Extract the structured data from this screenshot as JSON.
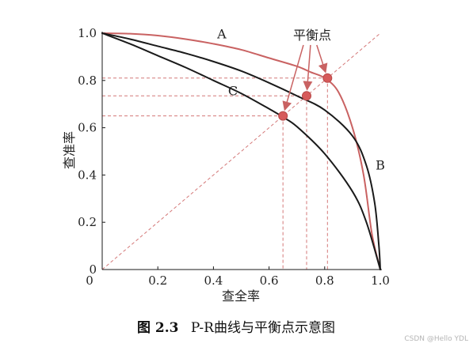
{
  "chart_data": {
    "type": "line",
    "xlabel": "查全率",
    "ylabel": "查准率",
    "xlim": [
      0,
      1
    ],
    "ylim": [
      0,
      1
    ],
    "x_ticks": [
      "0",
      "0.2",
      "0.4",
      "0.6",
      "0.8",
      "1.0"
    ],
    "x_tick_values": [
      0,
      0.2,
      0.4,
      0.6,
      0.8,
      1.0
    ],
    "y_ticks": [
      "0",
      "0.2",
      "0.4",
      "0.6",
      "0.8",
      "1.0"
    ],
    "y_tick_values": [
      0,
      0.2,
      0.4,
      0.6,
      0.8,
      1.0
    ],
    "grid": false,
    "colors": {
      "red": "#c96262",
      "black": "#1a1a1a",
      "guide_red": "#d47878",
      "marker": "#d65a5a"
    },
    "series": [
      {
        "name": "A",
        "color": "red",
        "x": [
          0,
          0.1,
          0.2,
          0.3,
          0.4,
          0.5,
          0.6,
          0.7,
          0.75,
          0.8,
          0.85,
          0.9,
          0.94,
          0.97,
          1.0
        ],
        "y": [
          1.0,
          0.998,
          0.99,
          0.975,
          0.955,
          0.93,
          0.895,
          0.86,
          0.835,
          0.81,
          0.75,
          0.6,
          0.4,
          0.15,
          0.0
        ]
      },
      {
        "name": "B",
        "color": "black",
        "x": [
          0,
          0.1,
          0.2,
          0.3,
          0.4,
          0.5,
          0.6,
          0.7,
          0.8,
          0.9,
          0.95,
          0.98,
          0.995,
          1.0
        ],
        "y": [
          1.0,
          0.975,
          0.945,
          0.915,
          0.88,
          0.84,
          0.79,
          0.735,
          0.675,
          0.565,
          0.44,
          0.28,
          0.1,
          0.0
        ]
      },
      {
        "name": "C",
        "color": "black",
        "x": [
          0,
          0.1,
          0.2,
          0.3,
          0.4,
          0.5,
          0.6,
          0.65,
          0.7,
          0.8,
          0.9,
          0.95,
          1.0
        ],
        "y": [
          1.0,
          0.955,
          0.905,
          0.855,
          0.8,
          0.745,
          0.68,
          0.645,
          0.605,
          0.49,
          0.33,
          0.2,
          0.0
        ]
      }
    ],
    "diagonal": {
      "x": [
        0,
        1.0
      ],
      "y": [
        0,
        1.0
      ],
      "style": "dashed",
      "color": "guide_red"
    },
    "equilibrium_points": [
      {
        "x": 0.65,
        "y": 0.65
      },
      {
        "x": 0.735,
        "y": 0.735
      },
      {
        "x": 0.81,
        "y": 0.81
      }
    ],
    "curve_labels": [
      {
        "text": "A",
        "x": 0.43,
        "y": 0.995
      },
      {
        "text": "B",
        "x": 1.0,
        "y": 0.44
      },
      {
        "text": "C",
        "x": 0.47,
        "y": 0.755
      }
    ],
    "annotation": {
      "text": "平衡点",
      "x": 0.755,
      "y": 0.99
    }
  },
  "caption": {
    "number": "图 2.3",
    "text": "P-R曲线与平衡点示意图"
  },
  "watermark": "CSDN @Hello YDL"
}
